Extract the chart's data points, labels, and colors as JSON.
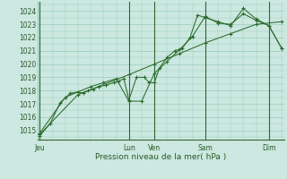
{
  "title": "Pression niveau de la mer( hPa )",
  "bg_color": "#cce8e0",
  "grid_color": "#99ccbb",
  "line_color": "#2d6b2d",
  "dark_line_color": "#1a4a1a",
  "ylim": [
    1014.3,
    1024.7
  ],
  "yticks": [
    1015,
    1016,
    1017,
    1018,
    1019,
    1020,
    1021,
    1022,
    1023,
    1024
  ],
  "x_day_labels": [
    "Jeu",
    "Lun",
    "Ven",
    "Sam",
    "Dim"
  ],
  "x_day_positions": [
    0.0,
    3.5,
    4.5,
    6.5,
    9.0
  ],
  "xlim": [
    -0.1,
    9.6
  ],
  "vlines": [
    0.0,
    3.5,
    4.5,
    6.5,
    9.0
  ],
  "series_detailed": {
    "x": [
      0.0,
      0.4,
      0.8,
      1.2,
      1.5,
      1.7,
      1.9,
      2.1,
      2.3,
      2.6,
      2.9,
      3.1,
      3.3,
      3.5,
      3.8,
      4.1,
      4.3,
      4.5,
      4.7,
      5.0,
      5.3,
      5.6,
      5.9,
      6.2,
      6.5,
      7.0,
      7.5,
      8.0,
      8.5,
      9.0,
      9.5
    ],
    "y": [
      1014.6,
      1015.5,
      1017.1,
      1017.8,
      1017.9,
      1017.8,
      1018.0,
      1018.1,
      1018.3,
      1018.4,
      1018.6,
      1018.7,
      1018.9,
      1017.3,
      1019.0,
      1019.0,
      1018.6,
      1018.6,
      1019.7,
      1020.5,
      1021.0,
      1021.2,
      1022.0,
      1023.7,
      1023.5,
      1023.2,
      1022.9,
      1024.2,
      1023.4,
      1022.9,
      1021.2
    ]
  },
  "series_smooth": {
    "x": [
      0.0,
      1.5,
      3.5,
      4.5,
      5.5,
      6.5,
      7.5,
      8.5,
      9.5
    ],
    "y": [
      1014.7,
      1017.7,
      1019.2,
      1020.0,
      1020.8,
      1021.6,
      1022.3,
      1023.0,
      1023.2
    ]
  },
  "series_mid": {
    "x": [
      0.0,
      1.0,
      2.0,
      2.5,
      3.0,
      3.5,
      4.0,
      4.5,
      5.0,
      5.5,
      6.0,
      6.5,
      7.0,
      7.5,
      8.0,
      8.5,
      9.0,
      9.5
    ],
    "y": [
      1014.8,
      1017.5,
      1018.3,
      1018.6,
      1018.9,
      1017.2,
      1017.2,
      1019.3,
      1020.2,
      1021.1,
      1022.1,
      1023.6,
      1023.1,
      1023.0,
      1023.8,
      1023.3,
      1022.9,
      1021.2
    ]
  }
}
